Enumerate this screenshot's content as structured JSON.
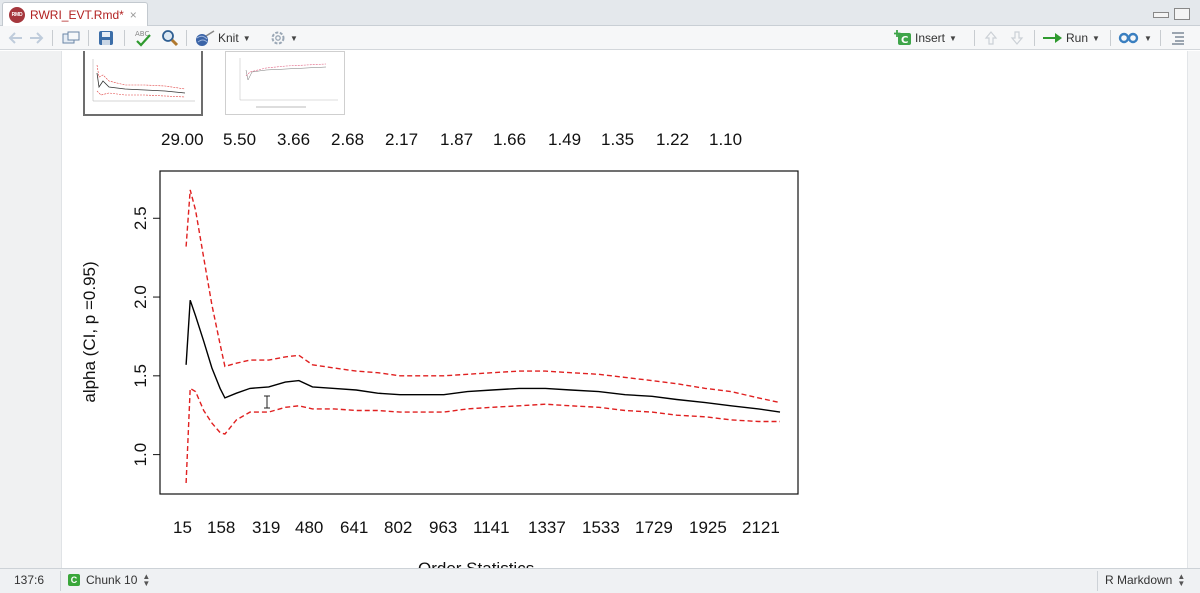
{
  "tab": {
    "filename": "RWRI_EVT.Rmd*",
    "icon": "rmd-file-icon"
  },
  "toolbar": {
    "knit_label": "Knit",
    "insert_label": "Insert",
    "run_label": "Run"
  },
  "plot_top_ticks": [
    "29.00",
    "5.50",
    "3.66",
    "2.68",
    "2.17",
    "1.87",
    "1.66",
    "1.49",
    "1.35",
    "1.22",
    "1.10"
  ],
  "plot_bottom_ticks": [
    "15",
    "158",
    "319",
    "480",
    "641",
    "802",
    "963",
    "1141",
    "1337",
    "1533",
    "1729",
    "1925",
    "2121"
  ],
  "chart_data": {
    "type": "line",
    "xlabel": "Order Statistics",
    "ylabel": "alpha (CI, p =0.95)",
    "yticks": [
      "1.0",
      "1.5",
      "2.0",
      "2.5"
    ],
    "ylim": [
      0.75,
      2.8
    ],
    "xlim": [
      0,
      2200
    ],
    "x": [
      15,
      30,
      50,
      80,
      110,
      140,
      158,
      200,
      250,
      319,
      380,
      430,
      480,
      560,
      641,
      720,
      802,
      880,
      963,
      1050,
      1141,
      1240,
      1337,
      1430,
      1533,
      1630,
      1729,
      1820,
      1925,
      2020,
      2121,
      2200
    ],
    "series": [
      {
        "role": "estimate",
        "color": "#000000",
        "dash": "solid",
        "values": [
          1.57,
          1.98,
          1.88,
          1.72,
          1.55,
          1.42,
          1.36,
          1.39,
          1.42,
          1.43,
          1.46,
          1.47,
          1.43,
          1.42,
          1.41,
          1.39,
          1.38,
          1.38,
          1.38,
          1.4,
          1.41,
          1.42,
          1.42,
          1.41,
          1.4,
          1.38,
          1.37,
          1.35,
          1.33,
          1.31,
          1.29,
          1.27
        ]
      },
      {
        "role": "upper",
        "color": "#e02020",
        "dash": "dashed",
        "values": [
          2.32,
          2.68,
          2.55,
          2.25,
          1.95,
          1.7,
          1.56,
          1.58,
          1.6,
          1.6,
          1.62,
          1.63,
          1.57,
          1.55,
          1.53,
          1.52,
          1.5,
          1.5,
          1.5,
          1.51,
          1.52,
          1.53,
          1.53,
          1.52,
          1.51,
          1.49,
          1.47,
          1.45,
          1.42,
          1.4,
          1.36,
          1.33
        ]
      },
      {
        "role": "lower",
        "color": "#e02020",
        "dash": "dashed",
        "values": [
          0.82,
          1.42,
          1.4,
          1.28,
          1.2,
          1.14,
          1.13,
          1.22,
          1.27,
          1.27,
          1.3,
          1.31,
          1.29,
          1.29,
          1.28,
          1.28,
          1.27,
          1.27,
          1.27,
          1.29,
          1.3,
          1.31,
          1.32,
          1.31,
          1.3,
          1.28,
          1.27,
          1.25,
          1.24,
          1.22,
          1.21,
          1.21
        ]
      }
    ]
  },
  "status": {
    "cursor_position": "137:6",
    "chunk_label": "Chunk 10",
    "doc_type": "R Markdown"
  }
}
